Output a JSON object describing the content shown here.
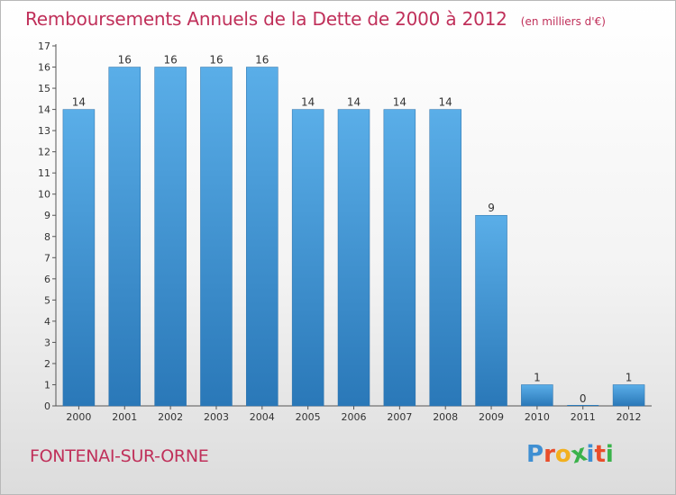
{
  "header": {
    "title": "Remboursements Annuels de la Dette de 2000 à 2012",
    "subtitle": "(en milliers d'€)"
  },
  "footer": {
    "commune": "FONTENAI-SUR-ORNE",
    "brand_letters": [
      "P",
      "r",
      "o",
      "x",
      "i",
      "t",
      "i"
    ],
    "brand_colors": [
      "#3f8fd2",
      "#e94d2a",
      "#f2b01e",
      "#3ab24a",
      "#3f8fd2",
      "#e94d2a",
      "#3ab24a"
    ]
  },
  "chart_data": {
    "type": "bar",
    "categories": [
      "2000",
      "2001",
      "2002",
      "2003",
      "2004",
      "2005",
      "2006",
      "2007",
      "2008",
      "2009",
      "2010",
      "2011",
      "2012"
    ],
    "values": [
      14,
      16,
      16,
      16,
      16,
      14,
      14,
      14,
      14,
      9,
      1,
      0,
      1
    ],
    "data_labels": [
      "14",
      "16",
      "16",
      "16",
      "16",
      "14",
      "14",
      "14",
      "14",
      "9",
      "1",
      "0",
      "1"
    ],
    "ylim": [
      0,
      17
    ],
    "yticks": [
      "0",
      "1",
      "2",
      "3",
      "4",
      "5",
      "6",
      "7",
      "8",
      "9",
      "10",
      "11",
      "12",
      "13",
      "14",
      "15",
      "16",
      "17"
    ],
    "grid": false,
    "bar_color_top": "#5aaee8",
    "bar_color_bottom": "#2a78b8"
  }
}
